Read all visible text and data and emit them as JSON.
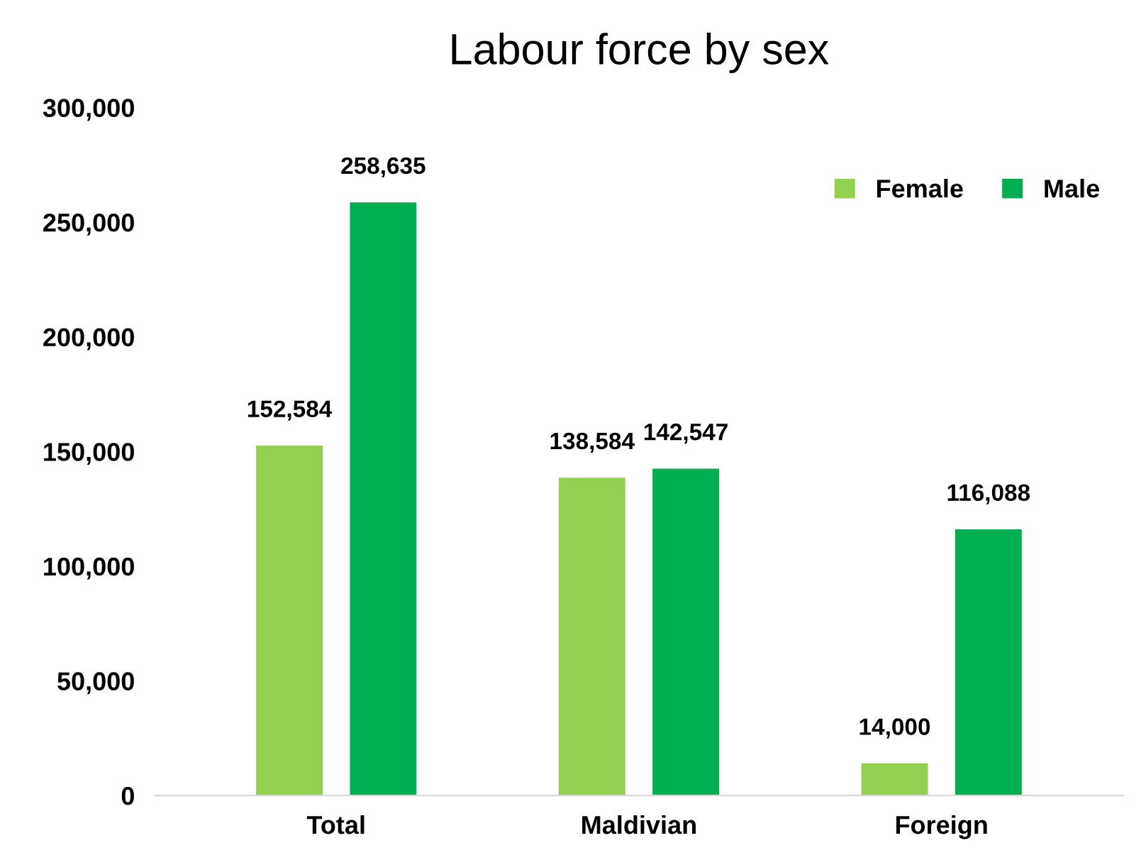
{
  "chart_data": {
    "type": "bar",
    "title": "Labour force by sex",
    "categories": [
      "Total",
      "Maldivian",
      "Foreign"
    ],
    "series": [
      {
        "name": "Female",
        "color": "#92d050",
        "values": [
          152584,
          138584,
          14000
        ],
        "value_labels": [
          "152,584",
          "138,584",
          "14,000"
        ]
      },
      {
        "name": "Male",
        "color": "#00b050",
        "values": [
          258635,
          142547,
          116088
        ],
        "value_labels": [
          "258,635",
          "142,547",
          "116,088"
        ]
      }
    ],
    "ylim": [
      0,
      300000
    ],
    "yticks": [
      0,
      {
        "value": 50000,
        "label": "50,000"
      },
      {
        "value": 100000,
        "label": "100,000"
      },
      {
        "value": 150000,
        "label": "150,000"
      },
      {
        "value": 200000,
        "label": "200,000"
      },
      {
        "value": 250000,
        "label": "250,000"
      },
      {
        "value": 300000,
        "label": "300,000"
      }
    ],
    "grid": false,
    "legend": "top right"
  }
}
